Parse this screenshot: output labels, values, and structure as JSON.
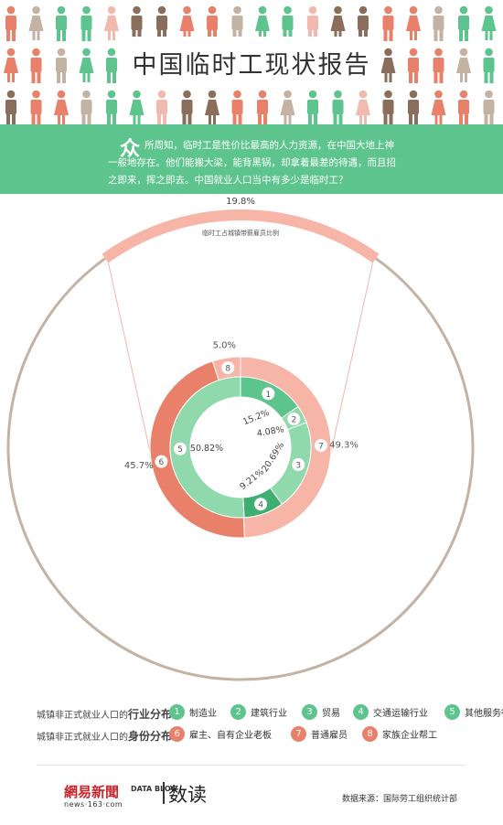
{
  "header": {
    "title": "中国临时工现状报告",
    "intro_dropcap": "众",
    "intro_text": "所周知，临时工是性价比最高的人力资源，在中国大地上神一般地存在。他们能搬大梁，能背黑锅，却拿着最差的待遇，而且招之即来，挥之即去。中国就业人口当中有多少是临时工？"
  },
  "colors": {
    "green": "#5cc48c",
    "green_light": "#8fd9ad",
    "green_dark": "#3fae72",
    "salmon": "#e8806a",
    "salmon_light": "#f6b5a7",
    "taupe": "#c4b2a3",
    "brown": "#8a6d5b",
    "pink": "#f2b9ae"
  },
  "chart_data": [
    {
      "type": "pie",
      "title": "临时工占城镇带薪雇员比例",
      "slices": [
        {
          "label": "临时工",
          "value": 19.8,
          "label_text": "19.8%"
        }
      ]
    },
    {
      "type": "pie",
      "title": "城镇非正式就业人口的行业分布",
      "slices": [
        {
          "id": "1",
          "label": "制造业",
          "value": 15.2,
          "label_text": "15.2%"
        },
        {
          "id": "2",
          "label": "建筑行业",
          "value": 4.08,
          "label_text": "4.08%"
        },
        {
          "id": "3",
          "label": "贸易",
          "value": 20.69,
          "label_text": "20.69%"
        },
        {
          "id": "4",
          "label": "交通运输行业",
          "value": 9.21,
          "label_text": "9.21%"
        },
        {
          "id": "5",
          "label": "其他服务行业",
          "value": 50.82,
          "label_text": "50.82%"
        }
      ]
    },
    {
      "type": "pie",
      "title": "城镇非正式就业人口的身份分布",
      "slices": [
        {
          "id": "7",
          "label": "普通雇员",
          "value": 49.3,
          "label_text": "49.3%"
        },
        {
          "id": "6",
          "label": "雇主、自有企业老板",
          "value": 45.7,
          "label_text": "45.7%"
        },
        {
          "id": "8",
          "label": "家族企业帮工",
          "value": 5.0,
          "label_text": "5.0%"
        }
      ]
    }
  ],
  "legend": {
    "industry": {
      "prefix": "城镇非正式就业人口的",
      "emphasis": "行业分布",
      "items": [
        {
          "id": "1",
          "label": "制造业"
        },
        {
          "id": "2",
          "label": "建筑行业"
        },
        {
          "id": "3",
          "label": "贸易"
        },
        {
          "id": "4",
          "label": "交通运输行业"
        },
        {
          "id": "5",
          "label": "其他服务行业"
        }
      ]
    },
    "identity": {
      "prefix": "城镇非正式就业人口的",
      "emphasis": "身份分布",
      "items": [
        {
          "id": "6",
          "label": "雇主、自有企业老板"
        },
        {
          "id": "7",
          "label": "普通雇员"
        },
        {
          "id": "8",
          "label": "家族企业帮工"
        }
      ]
    }
  },
  "footer": {
    "brand_netease": "網易新聞",
    "brand_netease_sub": "news·163·com",
    "brand_datablog": "DATA BLOG",
    "brand_dudu": "数读",
    "source": "数据来源：国际劳工组织统计部"
  }
}
